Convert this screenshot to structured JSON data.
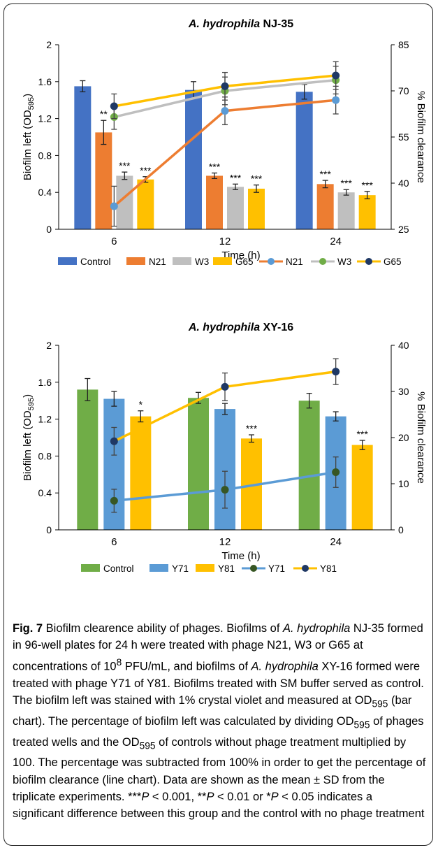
{
  "colors": {
    "control_nj": "#4472c4",
    "n21": "#ed7d31",
    "w3": "#bfbfbf",
    "g65": "#ffc000",
    "n21_line": "#ed7d31",
    "n21_marker": "#5b9bd5",
    "w3_marker": "#70ad47",
    "g65_marker": "#1f3864",
    "control_xy": "#70ad47",
    "y71": "#5b9bd5",
    "y81": "#ffc000",
    "y71_line": "#5b9bd5",
    "y71_marker": "#375623",
    "y81_line": "#ffc000",
    "y81_marker": "#1f3864"
  },
  "chart_data": [
    {
      "type": "bar",
      "title": "A. hydrophila NJ-35",
      "title_italic": "A. hydrophila",
      "title_rest": "NJ-35",
      "xlabel": "Time (h)",
      "ylabel_main": "Biofilm left (OD",
      "ylabel_sub": "595",
      "ylabel_close": ")",
      "y2label": "% Biofilm clearance",
      "categories": [
        "6",
        "12",
        "24"
      ],
      "ylim": [
        0,
        2
      ],
      "yticks": [
        "0",
        "0.4",
        "0.8",
        "1.2",
        "1.6",
        "2"
      ],
      "y2lim": [
        25,
        85
      ],
      "y2ticks": [
        "25",
        "40",
        "55",
        "70",
        "85"
      ],
      "bar_series": [
        {
          "name": "Control",
          "color_key": "control_nj",
          "values": [
            1.55,
            1.51,
            1.49
          ],
          "errors": [
            0.06,
            0.09,
            0.08
          ],
          "sig": [
            "",
            "",
            ""
          ]
        },
        {
          "name": "N21",
          "color_key": "n21",
          "values": [
            1.05,
            0.58,
            0.49
          ],
          "errors": [
            0.13,
            0.03,
            0.04
          ],
          "sig": [
            "**",
            "***",
            "***"
          ]
        },
        {
          "name": "W3",
          "color_key": "w3",
          "values": [
            0.58,
            0.46,
            0.4
          ],
          "errors": [
            0.04,
            0.03,
            0.03
          ],
          "sig": [
            "***",
            "***",
            "***"
          ]
        },
        {
          "name": "G65",
          "color_key": "g65",
          "values": [
            0.54,
            0.44,
            0.37
          ],
          "errors": [
            0.03,
            0.04,
            0.04
          ],
          "sig": [
            "***",
            "***",
            "***"
          ]
        }
      ],
      "line_series": [
        {
          "name": "N21",
          "line_color_key": "n21_line",
          "marker_color_key": "n21_marker",
          "values": [
            32.5,
            63.5,
            67
          ],
          "errors": [
            6.5,
            4.5,
            4.5
          ]
        },
        {
          "name": "W3",
          "line_color_key": "w3",
          "marker_color_key": "w3_marker",
          "values": [
            61.5,
            70,
            73.5
          ],
          "errors": [
            4.0,
            4.5,
            4.5
          ]
        },
        {
          "name": "G65",
          "line_color_key": "g65",
          "marker_color_key": "g65_marker",
          "values": [
            65,
            71.5,
            75
          ],
          "errors": [
            4.0,
            4.5,
            4.5
          ]
        }
      ],
      "legend": [
        "Control",
        "N21",
        "W3",
        "G65",
        "N21",
        "W3",
        "G65"
      ]
    },
    {
      "type": "bar",
      "title": "A. hydrophila XY-16",
      "title_italic": "A. hydrophila",
      "title_rest": "XY-16",
      "xlabel": "Time (h)",
      "ylabel_main": "Biofilm left (OD",
      "ylabel_sub": "595",
      "ylabel_close": ")",
      "y2label": "% Biofilm clearance",
      "categories": [
        "6",
        "12",
        "24"
      ],
      "ylim": [
        0,
        2
      ],
      "yticks": [
        "0",
        "0.4",
        "0.8",
        "1.2",
        "1.6",
        "2"
      ],
      "y2lim": [
        0,
        40
      ],
      "y2ticks": [
        "0",
        "10",
        "20",
        "30",
        "40"
      ],
      "bar_series": [
        {
          "name": "Control",
          "color_key": "control_xy",
          "values": [
            1.52,
            1.43,
            1.4
          ],
          "errors": [
            0.12,
            0.06,
            0.08
          ],
          "sig": [
            "",
            "",
            ""
          ]
        },
        {
          "name": "Y71",
          "color_key": "y71",
          "values": [
            1.42,
            1.31,
            1.23
          ],
          "errors": [
            0.08,
            0.06,
            0.05
          ],
          "sig": [
            "",
            "",
            ""
          ]
        },
        {
          "name": "Y81",
          "color_key": "y81",
          "values": [
            1.23,
            0.99,
            0.92
          ],
          "errors": [
            0.06,
            0.04,
            0.05
          ],
          "sig": [
            "*",
            "***",
            "***"
          ]
        }
      ],
      "line_series": [
        {
          "name": "Y71",
          "line_color_key": "y71_line",
          "marker_color_key": "y71_marker",
          "values": [
            6.3,
            8.7,
            12.5
          ],
          "errors": [
            2.5,
            4.0,
            3.3
          ]
        },
        {
          "name": "Y81",
          "line_color_key": "y81_line",
          "marker_color_key": "y81_marker",
          "values": [
            19.2,
            31,
            34.3
          ],
          "errors": [
            3.0,
            3.0,
            2.8
          ]
        }
      ],
      "legend": [
        "Control",
        "Y71",
        "Y81",
        "Y71",
        "Y81"
      ]
    }
  ],
  "caption": {
    "fig_label": "Fig. 7",
    "t1": " Biofilm clearence ability of phages. Biofilms of ",
    "i1": "A. hydrophila",
    "t2": " NJ-35 formed in 96-well plates for 24 h were treated with phage N21, W3 or G65 at concentrations of 10",
    "sup1": "8",
    "t3": " PFU/mL, and biofilms of ",
    "i2": "A. hydrophila",
    "t4": " XY-16 formed were treated with phage Y71 of Y81. Biofilms treated with SM buffer served as control. The biofilm left was stained with 1% crystal violet and measured at OD",
    "sub1": "595",
    "t5": " (bar chart). The percentage of biofilm left was calculated by dividing OD",
    "sub2": "595",
    "t6": " of phages treated wells and the OD",
    "sub3": "595",
    "t7": " of controls without phage treatment multiplied by 100. The percentage was subtracted from 100% in order to get the percentage of biofilm clearance (line chart). Data are shown as the mean ± SD from the triplicate experiments. ***",
    "p1": "P",
    "t8": " < 0.001, **",
    "p2": "P",
    "t9": " < 0.01 or *",
    "p3": "P",
    "t10": " < 0.05 indicates a significant difference between this group and the control with no phage treatment"
  }
}
